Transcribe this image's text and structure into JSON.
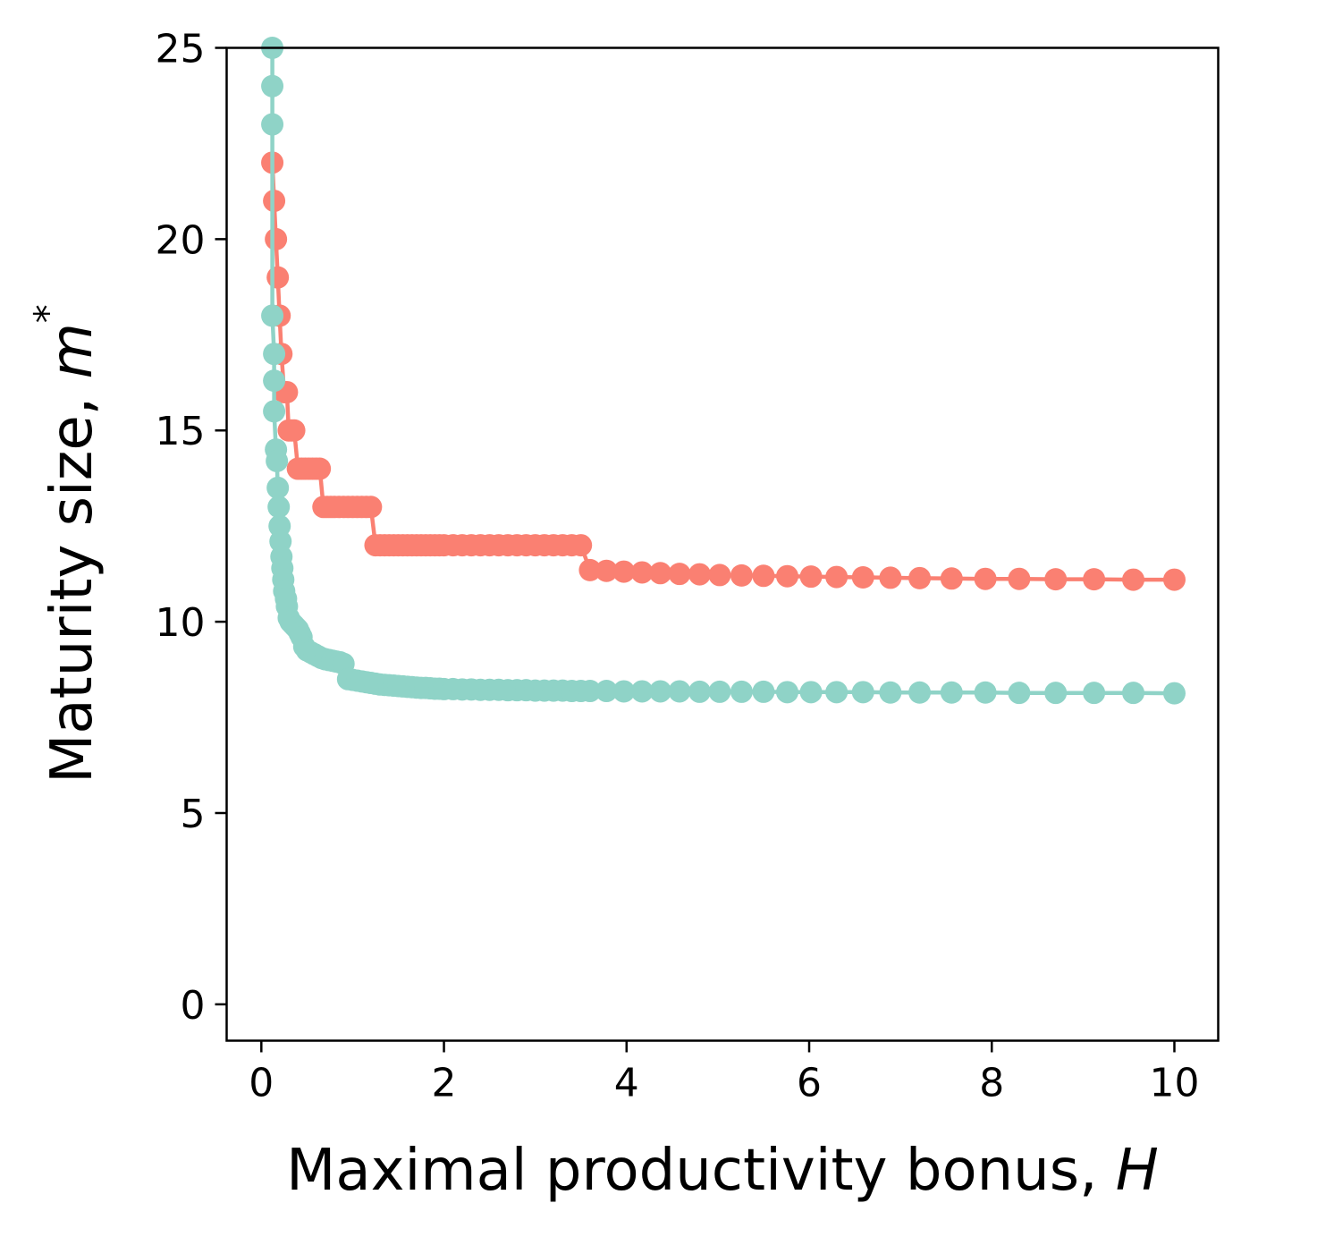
{
  "chart_data": {
    "type": "line",
    "title": "",
    "xlabel": "Maximal productivity bonus, ",
    "xlabel_var": "H",
    "ylabel": "Maturity size, ",
    "ylabel_var": "m",
    "ylabel_sup": "*",
    "xlim": [
      -0.38,
      10.48
    ],
    "ylim": [
      -0.95,
      25
    ],
    "xticks": [
      0,
      2,
      4,
      6,
      8,
      10
    ],
    "yticks": [
      0,
      5,
      10,
      15,
      20,
      25
    ],
    "grid": false,
    "legend": "none",
    "series": [
      {
        "color": "#fa8072",
        "x": [
          0.12,
          0.14,
          0.16,
          0.18,
          0.2,
          0.22,
          0.25,
          0.28,
          0.3,
          0.33,
          0.36,
          0.4,
          0.44,
          0.48,
          0.52,
          0.56,
          0.6,
          0.64,
          0.68,
          0.72,
          0.76,
          0.8,
          0.85,
          0.9,
          0.95,
          1.0,
          1.05,
          1.1,
          1.15,
          1.2,
          1.25,
          1.3,
          1.35,
          1.4,
          1.45,
          1.5,
          1.55,
          1.6,
          1.65,
          1.7,
          1.75,
          1.8,
          1.85,
          1.9,
          1.95,
          2.0,
          2.1,
          2.2,
          2.3,
          2.4,
          2.5,
          2.6,
          2.7,
          2.8,
          2.9,
          3.0,
          3.1,
          3.2,
          3.3,
          3.4,
          3.5,
          3.6,
          3.78,
          3.97,
          4.17,
          4.37,
          4.58,
          4.8,
          5.02,
          5.26,
          5.5,
          5.76,
          6.02,
          6.3,
          6.59,
          6.89,
          7.21,
          7.56,
          7.93,
          8.3,
          8.7,
          9.12,
          9.55,
          10.0
        ],
        "y": [
          22,
          21,
          20,
          19,
          18,
          17,
          16,
          16,
          15,
          15,
          15,
          14,
          14,
          14,
          14,
          14,
          14,
          14,
          13,
          13,
          13,
          13,
          13,
          13,
          13,
          13,
          13,
          13,
          13,
          13,
          12,
          12,
          12,
          12,
          12,
          12,
          12,
          12,
          12,
          12,
          12,
          12,
          12,
          12,
          12,
          12,
          12,
          12,
          12,
          12,
          12,
          12,
          12,
          12,
          12,
          12,
          12,
          12,
          12,
          12,
          12,
          11.35,
          11.33,
          11.31,
          11.29,
          11.27,
          11.25,
          11.24,
          11.22,
          11.21,
          11.2,
          11.19,
          11.18,
          11.17,
          11.16,
          11.15,
          11.14,
          11.13,
          11.12,
          11.12,
          11.11,
          11.11,
          11.1,
          11.1
        ]
      },
      {
        "color": "#8fd3c7",
        "x": [
          0.12,
          0.12,
          0.12,
          0.12,
          0.14,
          0.14,
          0.14,
          0.16,
          0.17,
          0.18,
          0.19,
          0.2,
          0.21,
          0.22,
          0.23,
          0.24,
          0.25,
          0.27,
          0.28,
          0.3,
          0.32,
          0.34,
          0.36,
          0.38,
          0.4,
          0.42,
          0.44,
          0.47,
          0.5,
          0.54,
          0.58,
          0.62,
          0.66,
          0.7,
          0.74,
          0.78,
          0.82,
          0.86,
          0.9,
          0.95,
          1.0,
          1.05,
          1.1,
          1.15,
          1.2,
          1.25,
          1.3,
          1.35,
          1.4,
          1.45,
          1.5,
          1.55,
          1.6,
          1.65,
          1.7,
          1.75,
          1.8,
          1.85,
          1.9,
          1.95,
          2.0,
          2.1,
          2.2,
          2.3,
          2.4,
          2.5,
          2.6,
          2.7,
          2.8,
          2.9,
          3.0,
          3.1,
          3.2,
          3.3,
          3.4,
          3.5,
          3.6,
          3.78,
          3.97,
          4.17,
          4.37,
          4.58,
          4.8,
          5.02,
          5.26,
          5.5,
          5.76,
          6.02,
          6.3,
          6.59,
          6.89,
          7.21,
          7.56,
          7.93,
          8.3,
          8.7,
          9.12,
          9.55,
          10.0
        ],
        "y": [
          25,
          24,
          23,
          18,
          17,
          16.3,
          15.5,
          14.5,
          14.2,
          13.5,
          13.0,
          12.5,
          12.1,
          11.7,
          11.4,
          11.1,
          10.8,
          10.6,
          10.4,
          10.1,
          10.0,
          9.95,
          9.9,
          9.85,
          9.8,
          9.7,
          9.6,
          9.35,
          9.25,
          9.2,
          9.15,
          9.1,
          9.05,
          9.02,
          9.0,
          8.98,
          8.96,
          8.94,
          8.9,
          8.5,
          8.48,
          8.46,
          8.44,
          8.42,
          8.4,
          8.38,
          8.36,
          8.35,
          8.34,
          8.33,
          8.32,
          8.31,
          8.3,
          8.29,
          8.28,
          8.27,
          8.27,
          8.26,
          8.25,
          8.25,
          8.24,
          8.24,
          8.23,
          8.23,
          8.22,
          8.22,
          8.22,
          8.21,
          8.21,
          8.21,
          8.2,
          8.2,
          8.2,
          8.2,
          8.19,
          8.19,
          8.19,
          8.19,
          8.18,
          8.18,
          8.18,
          8.18,
          8.17,
          8.17,
          8.17,
          8.17,
          8.16,
          8.16,
          8.16,
          8.16,
          8.15,
          8.15,
          8.15,
          8.15,
          8.14,
          8.14,
          8.14,
          8.14,
          8.13
        ]
      }
    ]
  }
}
